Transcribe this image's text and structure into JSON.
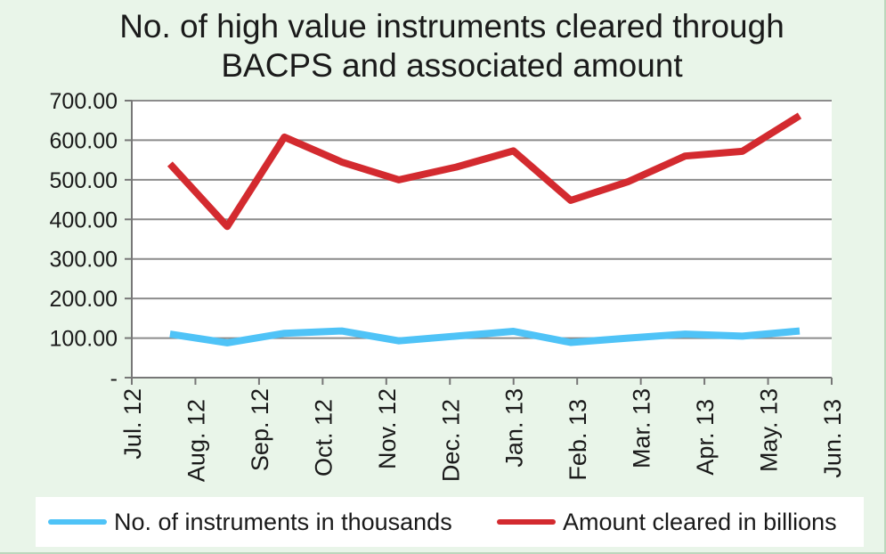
{
  "chart_data": {
    "type": "line",
    "title": "No. of high value instruments cleared through BACPS and associated amount",
    "x_tick_labels": [
      "Jul. 12",
      "Aug. 12",
      "Sep. 12",
      "Oct. 12",
      "Nov. 12",
      "Dec. 12",
      "Jan. 13",
      "Feb. 13",
      "Mar. 13",
      "Apr. 13",
      "May. 13",
      "Jun. 13"
    ],
    "y_tick_labels": [
      "-",
      "100.00",
      "200.00",
      "300.00",
      "400.00",
      "500.00",
      "600.00",
      "700.00"
    ],
    "ylim": [
      0,
      700
    ],
    "grid": true,
    "legend_position": "bottom",
    "series": [
      {
        "name": "No. of instruments in thousands",
        "color": "#4fc3f7",
        "values": [
          110,
          88,
          112,
          118,
          93,
          105,
          117,
          89,
          100,
          110,
          105,
          118
        ]
      },
      {
        "name": "Amount cleared in billions",
        "color": "#d32a2f",
        "values": [
          540,
          382,
          608,
          545,
          500,
          532,
          573,
          448,
          495,
          560,
          572,
          662
        ]
      }
    ]
  }
}
